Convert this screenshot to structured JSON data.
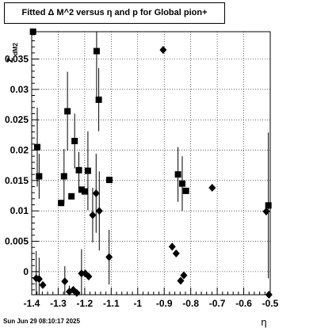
{
  "chart_data": {
    "type": "scatter",
    "title": "Fitted Δ M^2 versus η and p for Global pion+",
    "xlabel": "η",
    "ylabel": "z",
    "ylabel_sub": "dM2",
    "xlim": [
      -1.4,
      -0.5
    ],
    "ylim": [
      -0.0038,
      0.0395
    ],
    "x_ticks": [
      -1.4,
      -1.3,
      -1.2,
      -1.1,
      -1.0,
      -0.9,
      -0.8,
      -0.7,
      -0.6,
      -0.5
    ],
    "x_tick_labels": [
      "-1.4",
      "-1.3",
      "-1.2",
      "-1.1",
      "-1",
      "-0.9",
      "-0.8",
      "-0.7",
      "-0.6",
      "-0.5"
    ],
    "y_ticks": [
      0,
      0.005,
      0.01,
      0.015,
      0.02,
      0.025,
      0.03,
      0.035
    ],
    "y_tick_labels": [
      "0",
      "0.005",
      "0.01",
      "0.015",
      "0.02",
      "0.025",
      "0.03",
      "0.035"
    ],
    "grid": true,
    "series": [
      {
        "marker": "square",
        "points": [
          {
            "x": -1.395,
            "y": 0.0395,
            "err": 0.0
          },
          {
            "x": -1.379,
            "y": 0.0205,
            "err": 0.0065
          },
          {
            "x": -1.372,
            "y": 0.0157,
            "err": 0.0037
          },
          {
            "x": -1.289,
            "y": 0.0113,
            "err": 0.0
          },
          {
            "x": -1.278,
            "y": 0.0157,
            "err": 0.0045
          },
          {
            "x": -1.265,
            "y": 0.0264,
            "err": 0.0065
          },
          {
            "x": -1.25,
            "y": 0.0124,
            "err": 0.0
          },
          {
            "x": -1.238,
            "y": 0.0215,
            "err": 0.0045
          },
          {
            "x": -1.222,
            "y": 0.0167,
            "err": 0.003
          },
          {
            "x": -1.212,
            "y": 0.0135,
            "err": 0.0
          },
          {
            "x": -1.2,
            "y": 0.0132,
            "err": 0.0
          },
          {
            "x": -1.188,
            "y": 0.0166,
            "err": 0.0065
          },
          {
            "x": -1.155,
            "y": 0.0363,
            "err": 0.008
          },
          {
            "x": -1.147,
            "y": 0.0283,
            "err": 0.0052
          },
          {
            "x": -1.107,
            "y": 0.0151,
            "err": 0.0
          },
          {
            "x": -0.848,
            "y": 0.016,
            "err": 0.0045
          },
          {
            "x": -0.832,
            "y": 0.0145,
            "err": 0.0045
          },
          {
            "x": -0.818,
            "y": 0.0133,
            "err": 0.0
          },
          {
            "x": -0.507,
            "y": 0.0109,
            "err": 0.012
          }
        ]
      },
      {
        "marker": "diamond",
        "points": [
          {
            "x": -1.383,
            "y": -0.0011,
            "err": 0.0045
          },
          {
            "x": -1.372,
            "y": -0.0012,
            "err": 0.0035
          },
          {
            "x": -1.358,
            "y": -0.0022,
            "err": 0.0
          },
          {
            "x": -1.275,
            "y": -0.0016,
            "err": 0.0025
          },
          {
            "x": -1.258,
            "y": -0.0033,
            "err": 0.001
          },
          {
            "x": -1.243,
            "y": -0.003,
            "err": 0.0
          },
          {
            "x": -1.23,
            "y": -0.0035,
            "err": 0.0
          },
          {
            "x": -1.212,
            "y": -0.0003,
            "err": 0.004
          },
          {
            "x": -1.198,
            "y": -0.0003,
            "err": 0.0
          },
          {
            "x": -1.185,
            "y": -0.0008,
            "err": 0.0
          },
          {
            "x": -1.17,
            "y": 0.0093,
            "err": 0.0045
          },
          {
            "x": -1.157,
            "y": 0.0129,
            "err": 0.0065
          },
          {
            "x": -1.145,
            "y": 0.01,
            "err": 0.0065
          },
          {
            "x": -1.108,
            "y": 0.0024,
            "err": 0.0045
          },
          {
            "x": -0.904,
            "y": 0.0365,
            "err": 0.0
          },
          {
            "x": -0.87,
            "y": 0.0041,
            "err": 0.0
          },
          {
            "x": -0.855,
            "y": 0.003,
            "err": 0.0
          },
          {
            "x": -0.838,
            "y": -0.0015,
            "err": 0.0
          },
          {
            "x": -0.826,
            "y": -0.0006,
            "err": 0.0
          },
          {
            "x": -0.719,
            "y": 0.0138,
            "err": 0.0
          },
          {
            "x": -0.515,
            "y": 0.0099,
            "err": 0.0
          },
          {
            "x": -0.505,
            "y": -0.0038,
            "err": 0.0
          }
        ]
      }
    ]
  },
  "footer": {
    "timestamp": "Sun Jun 29 08:10:17 2025"
  }
}
